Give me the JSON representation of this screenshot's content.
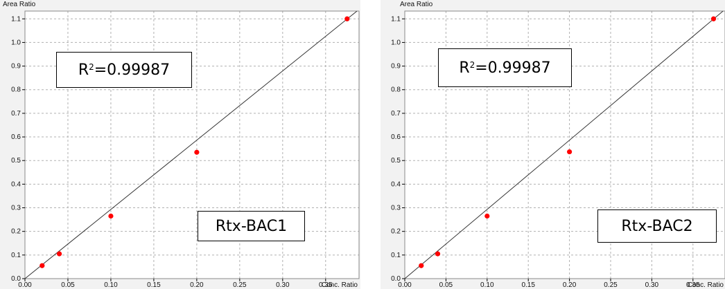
{
  "chart_data": [
    {
      "type": "scatter",
      "ylabel": "Area Ratio",
      "xlabel": "Conc. Ratio",
      "xlim": [
        0,
        0.3889
      ],
      "ylim": [
        0,
        1.133
      ],
      "x_ticks": [
        "0.00",
        "0.05",
        "0.10",
        "0.15",
        "0.20",
        "0.25",
        "0.30",
        "0.35"
      ],
      "y_ticks": [
        "0.0",
        "0.1",
        "0.2",
        "0.3",
        "0.4",
        "0.5",
        "0.6",
        "0.7",
        "0.8",
        "0.9",
        "1.0",
        "1.1"
      ],
      "grid": true,
      "points": [
        {
          "x": 0.02,
          "y": 0.055
        },
        {
          "x": 0.04,
          "y": 0.105
        },
        {
          "x": 0.1,
          "y": 0.265
        },
        {
          "x": 0.2,
          "y": 0.535
        },
        {
          "x": 0.375,
          "y": 1.1
        }
      ],
      "fit_line": {
        "x0": 0.0,
        "y0": 0.0,
        "x1": 0.3889,
        "y1": 1.14
      },
      "annotations": {
        "r2_prefix": "R",
        "r2_sup": "2",
        "r2_value": "=0.99987",
        "name": "Rtx-BAC1"
      },
      "point_color": "#ff0000",
      "line_color": "#333333",
      "grid_color": "#b0b0b0"
    },
    {
      "type": "scatter",
      "ylabel": "Area Ratio",
      "xlabel": "Conc. Ratio",
      "xlim": [
        0,
        0.3889
      ],
      "ylim": [
        0,
        1.133
      ],
      "x_ticks": [
        "0.00",
        "0.05",
        "0.10",
        "0.15",
        "0.20",
        "0.25",
        "0.30",
        "0.35"
      ],
      "y_ticks": [
        "0.0",
        "0.1",
        "0.2",
        "0.3",
        "0.4",
        "0.5",
        "0.6",
        "0.7",
        "0.8",
        "0.9",
        "1.0",
        "1.1"
      ],
      "grid": true,
      "points": [
        {
          "x": 0.02,
          "y": 0.055
        },
        {
          "x": 0.04,
          "y": 0.105
        },
        {
          "x": 0.1,
          "y": 0.265
        },
        {
          "x": 0.2,
          "y": 0.537
        },
        {
          "x": 0.375,
          "y": 1.1
        }
      ],
      "fit_line": {
        "x0": 0.0,
        "y0": 0.0,
        "x1": 0.3889,
        "y1": 1.14
      },
      "annotations": {
        "r2_prefix": "R",
        "r2_sup": "2",
        "r2_value": "=0.99987",
        "name": "Rtx-BAC2"
      },
      "point_color": "#ff0000",
      "line_color": "#333333",
      "grid_color": "#b0b0b0"
    }
  ]
}
